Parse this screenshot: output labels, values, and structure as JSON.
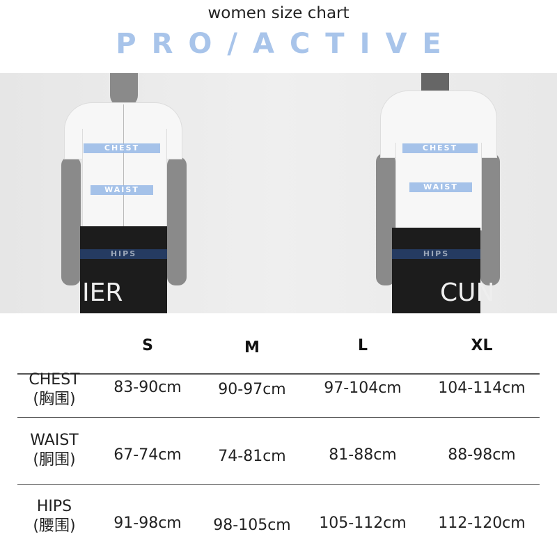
{
  "header": {
    "subtitle": "women size chart",
    "brand": "PRO/ACTIVE"
  },
  "photo": {
    "front_labels": {
      "chest": "CHEST",
      "waist": "WAIST",
      "hips": "HIPS"
    },
    "back_labels": {
      "chest": "CHEST",
      "waist": "WAIST",
      "hips": "HIPS"
    },
    "shorts_text_front": "IER",
    "shorts_text_back": "CUN"
  },
  "colors": {
    "accent": "#a8c4ea",
    "text": "#222222"
  },
  "table": {
    "columns": [
      "S",
      "M",
      "L",
      "XL"
    ],
    "rows": [
      {
        "label": "CHEST",
        "label_cn": "(胸围)",
        "values": [
          "83-90cm",
          "90-97cm",
          "97-104cm",
          "104-114cm"
        ]
      },
      {
        "label": "WAIST",
        "label_cn": "(胴围)",
        "values": [
          "67-74cm",
          "74-81cm",
          "81-88cm",
          "88-98cm"
        ]
      },
      {
        "label": "HIPS",
        "label_cn": "(腰围)",
        "values": [
          "91-98cm",
          "98-105cm",
          "105-112cm",
          "112-120cm"
        ]
      }
    ]
  }
}
